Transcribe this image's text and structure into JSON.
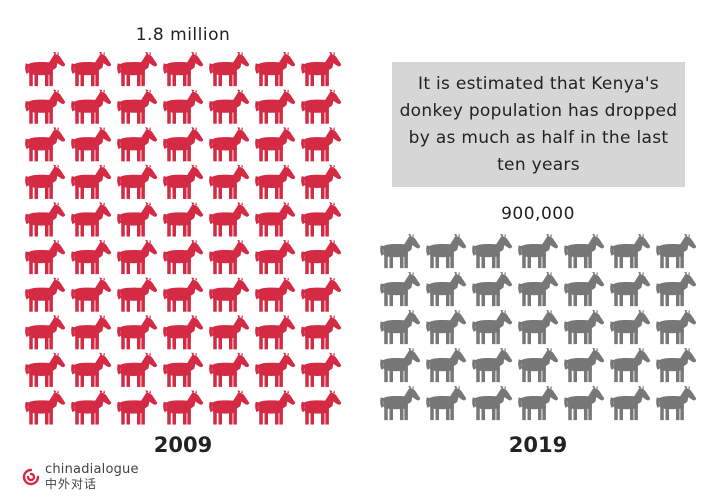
{
  "chart_data": {
    "type": "pictograph",
    "unit_icon": "donkey-icon",
    "series": [
      {
        "label": "2009",
        "value_label": "1.8 million",
        "value": 1800000,
        "icons": 70,
        "columns": 7,
        "color": "#d42a44"
      },
      {
        "label": "2019",
        "value_label": "900,000",
        "value": 900000,
        "icons": 35,
        "columns": 7,
        "color": "#777777"
      }
    ],
    "annotation": "It is estimated that Kenya's donkey population has dropped by as much as half in the last ten years"
  },
  "brand": {
    "name": "chinadialogue",
    "name_cn": "中外对话",
    "accent": "#d42a44"
  }
}
